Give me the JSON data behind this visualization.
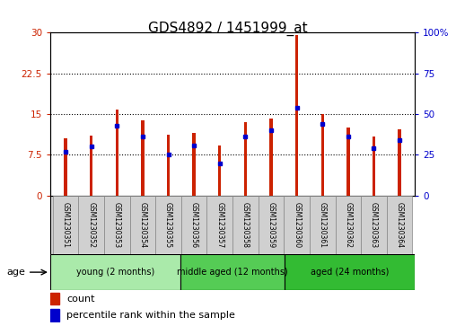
{
  "title": "GDS4892 / 1451999_at",
  "samples": [
    "GSM1230351",
    "GSM1230352",
    "GSM1230353",
    "GSM1230354",
    "GSM1230355",
    "GSM1230356",
    "GSM1230357",
    "GSM1230358",
    "GSM1230359",
    "GSM1230360",
    "GSM1230361",
    "GSM1230362",
    "GSM1230363",
    "GSM1230364"
  ],
  "counts": [
    10.5,
    11.0,
    15.8,
    13.8,
    11.2,
    11.5,
    9.2,
    13.5,
    14.2,
    29.5,
    15.0,
    12.5,
    10.8,
    12.2
  ],
  "percentile_ranks": [
    27,
    30,
    43,
    36,
    25,
    31,
    20,
    36,
    40,
    54,
    44,
    36,
    29,
    34
  ],
  "bar_color": "#cc2200",
  "percentile_color": "#0000cc",
  "ylim_left": [
    0,
    30
  ],
  "ylim_right": [
    0,
    100
  ],
  "yticks_left": [
    0,
    7.5,
    15,
    22.5,
    30
  ],
  "yticks_right": [
    0,
    25,
    50,
    75,
    100
  ],
  "group_configs": [
    {
      "start": 0,
      "end": 5,
      "label": "young (2 months)",
      "color": "#aaeaaa"
    },
    {
      "start": 5,
      "end": 9,
      "label": "middle aged (12 months)",
      "color": "#55cc55"
    },
    {
      "start": 9,
      "end": 14,
      "label": "aged (24 months)",
      "color": "#33bb33"
    }
  ],
  "age_label": "age",
  "legend_count_label": "count",
  "legend_percentile_label": "percentile rank within the sample",
  "background_color": "#ffffff",
  "bar_width": 0.12,
  "title_fontsize": 11,
  "tick_label_fontsize": 7.5,
  "sample_fontsize": 5.5,
  "group_fontsize": 7,
  "legend_fontsize": 8
}
